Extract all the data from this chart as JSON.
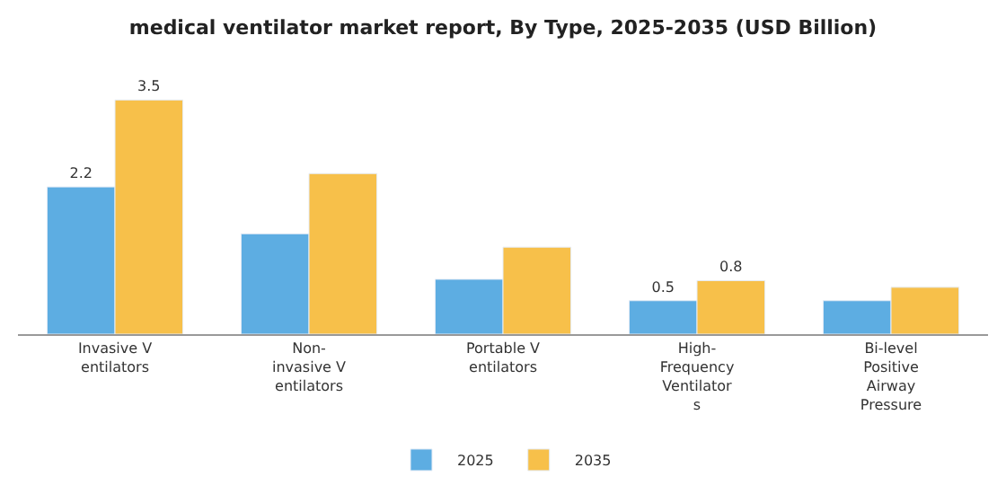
{
  "chart_data": {
    "type": "bar",
    "title": "medical ventilator market report, By Type, 2025-2035 (USD Billion)",
    "categories": [
      "Invasive V\nentilators",
      "Non-\ninvasive V\nentilators",
      "Portable V\nentilators",
      "High-\nFrequency\nVentilator\ns",
      "Bi-level\nPositive\nAirway\nPressure"
    ],
    "series": [
      {
        "name": "2025",
        "color": "#5dade2",
        "values": [
          2.2,
          1.5,
          0.82,
          0.5,
          0.5
        ],
        "value_labels": [
          "2.2",
          null,
          null,
          "0.5",
          null
        ]
      },
      {
        "name": "2035",
        "color": "#f7c04a",
        "values": [
          3.5,
          2.4,
          1.3,
          0.8,
          0.7
        ],
        "value_labels": [
          "3.5",
          null,
          null,
          "0.8",
          null
        ]
      }
    ],
    "legend": "bottom"
  }
}
